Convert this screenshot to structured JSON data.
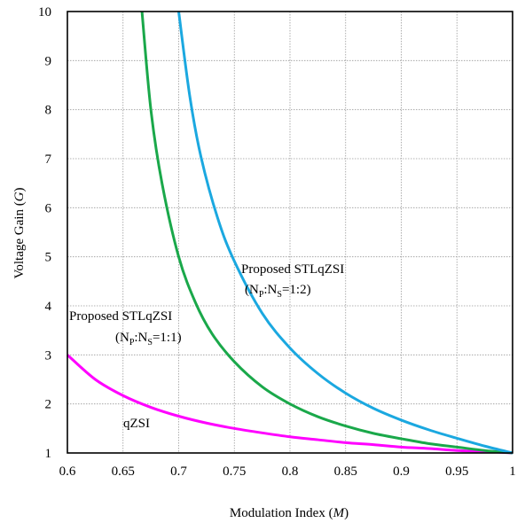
{
  "chart_data": {
    "type": "line",
    "xlabel_main": "Modulation Index (",
    "xlabel_var": "M",
    "xlabel_end": ")",
    "ylabel_main": "Voltage Gain (",
    "ylabel_var": "G",
    "ylabel_end": ")",
    "xlim": [
      0.6,
      1.0
    ],
    "ylim": [
      1,
      10
    ],
    "xticks": [
      "0.6",
      "0.65",
      "0.7",
      "0.75",
      "0.8",
      "0.85",
      "0.9",
      "0.95",
      "1"
    ],
    "yticks": [
      "1",
      "2",
      "3",
      "4",
      "5",
      "6",
      "7",
      "8",
      "9",
      "10"
    ],
    "grid": true,
    "series": [
      {
        "name": "qZSI",
        "color": "#ff00ff",
        "x": [
          0.6,
          0.625,
          0.65,
          0.675,
          0.7,
          0.725,
          0.75,
          0.775,
          0.8,
          0.825,
          0.85,
          0.875,
          0.9,
          0.925,
          0.95,
          0.975,
          1.0
        ],
        "y": [
          3.0,
          2.5,
          2.17,
          1.93,
          1.75,
          1.61,
          1.5,
          1.41,
          1.33,
          1.27,
          1.21,
          1.17,
          1.12,
          1.09,
          1.05,
          1.03,
          1.0
        ]
      },
      {
        "name": "Proposed STLqZSI (Np:Ns=1:1)",
        "color": "#1aa84a",
        "x": [
          0.667,
          0.675,
          0.685,
          0.7,
          0.715,
          0.73,
          0.75,
          0.775,
          0.8,
          0.825,
          0.85,
          0.875,
          0.9,
          0.925,
          0.95,
          0.975,
          1.0
        ],
        "y": [
          10.0,
          8.0,
          6.5,
          5.0,
          4.07,
          3.43,
          2.86,
          2.35,
          2.0,
          1.74,
          1.55,
          1.4,
          1.29,
          1.19,
          1.12,
          1.05,
          1.0
        ]
      },
      {
        "name": "Proposed STLqZSI (Np:Ns=1:2)",
        "color": "#1ba8e0",
        "x": [
          0.7,
          0.71,
          0.72,
          0.735,
          0.75,
          0.775,
          0.8,
          0.825,
          0.85,
          0.875,
          0.9,
          0.925,
          0.95,
          0.975,
          1.0
        ],
        "y": [
          10.0,
          8.27,
          7.04,
          5.79,
          4.91,
          3.85,
          3.14,
          2.62,
          2.22,
          1.91,
          1.67,
          1.47,
          1.3,
          1.14,
          1.0
        ]
      }
    ],
    "annotations": [
      {
        "id": "ann-12",
        "line1": "Proposed STLqZSI",
        "line2_pre": "(N",
        "sub1": "P",
        "mid": ":N",
        "sub2": "S",
        "line2_post": "=1:2)"
      },
      {
        "id": "ann-11",
        "line1": "Proposed STLqZSI",
        "line2_pre": "(N",
        "sub1": "P",
        "mid": ":N",
        "sub2": "S",
        "line2_post": "=1:1)"
      },
      {
        "id": "ann-q",
        "line1": "qZSI"
      }
    ]
  }
}
